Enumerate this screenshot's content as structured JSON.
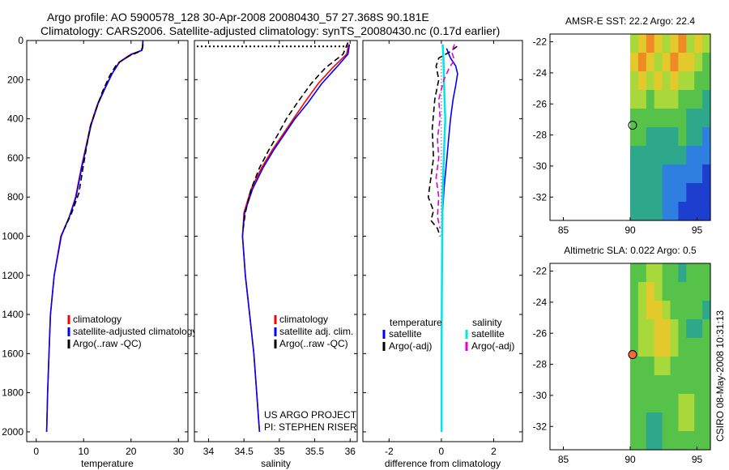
{
  "title_line1": "Argo profile: AO 5900578_128 30-Apr-2008 20080430_57 27.368S 90.181E",
  "title_line2": "Climatology: CARS2006. Satellite-adjusted climatology: synTS_20080430.nc (0.17d earlier)",
  "side_label": "CSIRO 08-May-2008 10:31:13",
  "colors": {
    "climatology": "#ff0000",
    "satellite": "#0000ff",
    "argo": "#000000",
    "sal_satellite": "#00e5e5",
    "sal_argo": "#dd00dd"
  },
  "chart_data": [
    {
      "type": "line",
      "id": "temperature",
      "xlabel": "temperature",
      "xlim": [
        -2,
        32
      ],
      "ylim": [
        2050,
        0
      ],
      "xticks": [
        0,
        10,
        20,
        30
      ],
      "yticks": [
        0,
        200,
        400,
        600,
        800,
        1000,
        1200,
        1400,
        1600,
        1800,
        2000
      ],
      "legend": [
        "climatology",
        "satellite-adjusted climatology",
        "Argo(..raw -QC)"
      ],
      "series": [
        {
          "name": "climatology",
          "color": "#ff0000",
          "dash": "",
          "x": [
            22.5,
            22.4,
            22.3,
            20,
            17.5,
            16,
            14.5,
            13,
            11.5,
            10.5,
            9.5,
            8.3,
            7,
            5.2,
            3.8,
            3,
            2.7,
            2.4,
            2.2
          ],
          "y": [
            0,
            30,
            50,
            70,
            110,
            170,
            240,
            320,
            430,
            540,
            650,
            800,
            900,
            1000,
            1200,
            1400,
            1600,
            1800,
            2000
          ]
        },
        {
          "name": "satellite-adjusted climatology",
          "color": "#0000ff",
          "dash": "",
          "x": [
            22.5,
            22.5,
            22.3,
            20.2,
            17.6,
            16,
            14.6,
            13.1,
            11.6,
            10.6,
            9.6,
            8.4,
            7,
            5.3,
            3.8,
            3,
            2.7,
            2.4,
            2.2
          ],
          "y": [
            0,
            30,
            50,
            70,
            110,
            170,
            240,
            320,
            430,
            540,
            650,
            800,
            900,
            1000,
            1200,
            1400,
            1600,
            1800,
            2000
          ]
        },
        {
          "name": "Argo(..raw -QC)",
          "color": "#000000",
          "dash": "7,4",
          "x": [
            22.5,
            22.4,
            21.5,
            19.5,
            17,
            15.5,
            14,
            12.8,
            11.4,
            10.5,
            9.8,
            9,
            7.5,
            6
          ],
          "y": [
            20,
            40,
            60,
            80,
            120,
            180,
            260,
            340,
            440,
            560,
            660,
            780,
            880,
            960
          ]
        }
      ]
    },
    {
      "type": "line",
      "id": "salinity",
      "xlabel": "salinity",
      "xlim": [
        33.8,
        36.1
      ],
      "ylim": [
        2050,
        0
      ],
      "xticks": [
        34,
        34.5,
        35,
        35.5,
        36
      ],
      "xtick_labels": [
        "34",
        "34.5",
        "35",
        "35.5",
        "36"
      ],
      "legend": [
        "climatology",
        "satellite adj. clim.",
        "Argo(..raw -QC)"
      ],
      "annotation": [
        "US ARGO PROJECT",
        "PI: STEPHEN RISER"
      ],
      "series": [
        {
          "name": "climatology",
          "color": "#ff0000",
          "dash": "",
          "x": [
            35.98,
            35.95,
            35.75,
            35.55,
            35.35,
            35.2,
            35.05,
            34.9,
            34.75,
            34.6,
            34.5,
            34.48,
            34.52,
            34.58,
            34.64,
            34.68,
            34.71,
            34.72
          ],
          "y": [
            20,
            70,
            140,
            220,
            320,
            400,
            480,
            560,
            650,
            760,
            880,
            1000,
            1200,
            1400,
            1600,
            1800,
            1950,
            2000
          ]
        },
        {
          "name": "satellite adj. clim.",
          "color": "#0000ff",
          "dash": "",
          "x": [
            35.99,
            35.97,
            35.8,
            35.6,
            35.4,
            35.22,
            35.07,
            34.92,
            34.77,
            34.62,
            34.51,
            34.48,
            34.52,
            34.58,
            34.64,
            34.68,
            34.71,
            34.72
          ],
          "y": [
            20,
            70,
            140,
            220,
            320,
            400,
            480,
            560,
            650,
            760,
            880,
            1000,
            1200,
            1400,
            1600,
            1800,
            1950,
            2000
          ]
        },
        {
          "name": "Argo(..raw -QC)",
          "color": "#000000",
          "dash": "7,4",
          "x": [
            35.97,
            35.9,
            35.65,
            35.45,
            35.25,
            35.1,
            34.98,
            34.85,
            34.72,
            34.6,
            34.52,
            34.49
          ],
          "y": [
            10,
            70,
            140,
            220,
            320,
            400,
            480,
            560,
            650,
            760,
            880,
            960
          ]
        }
      ]
    },
    {
      "type": "line",
      "id": "difference",
      "xlabel": "difference from climatology",
      "xlim": [
        -3,
        3.1
      ],
      "ylim": [
        2050,
        0
      ],
      "xticks": [
        -2,
        0,
        2
      ],
      "legend_left_title": "temperature",
      "legend_right_title": "salinity",
      "legend_left": [
        "satellite",
        "Argo(-adj)"
      ],
      "legend_right": [
        "satellite",
        "Argo(-adj)"
      ],
      "series": [
        {
          "name": "temperature satellite",
          "color": "#0000ff",
          "dash": "",
          "x": [
            0.2,
            0.35,
            0.55,
            0.62,
            0.55,
            0.45,
            0.35,
            0.28,
            0.2,
            0.1,
            0.05,
            0.03,
            0.02,
            0.01,
            0.01,
            0.01
          ],
          "y": [
            40,
            90,
            130,
            170,
            230,
            300,
            400,
            500,
            620,
            760,
            880,
            1000,
            1200,
            1500,
            1800,
            2000
          ]
        },
        {
          "name": "temperature Argo(-adj)",
          "color": "#000000",
          "dash": "7,4",
          "x": [
            0.6,
            0.3,
            -0.1,
            -0.2,
            -0.1,
            -0.25,
            -0.35,
            -0.3,
            -0.4,
            -0.5,
            -0.3,
            -0.4,
            -0.15,
            -0.05
          ],
          "y": [
            30,
            60,
            90,
            130,
            200,
            300,
            450,
            600,
            700,
            800,
            870,
            920,
            960,
            1000
          ]
        },
        {
          "name": "salinity satellite",
          "color": "#00e5e5",
          "dash": "",
          "x": [
            0.05,
            0.08,
            0.1,
            0.12,
            0.15,
            0.12,
            0.08,
            0.05,
            0.03,
            0.02,
            0.01,
            0.01
          ],
          "y": [
            20,
            100,
            200,
            300,
            400,
            500,
            650,
            800,
            1000,
            1300,
            1600,
            2000
          ]
        },
        {
          "name": "salinity Argo(-adj)",
          "color": "#dd00dd",
          "dash": "7,4",
          "x": [
            0.5,
            0.4,
            0.5,
            0.3,
            0.1,
            -0.1,
            -0.05,
            -0.15,
            -0.1,
            -0.2,
            -0.1,
            -0.15,
            -0.05
          ],
          "y": [
            20,
            60,
            100,
            140,
            200,
            300,
            400,
            500,
            600,
            700,
            800,
            900,
            960
          ]
        }
      ]
    },
    {
      "type": "heatmap",
      "id": "sst_map",
      "title": "AMSR-E SST: 22.2  Argo: 22.4",
      "xlim": [
        84,
        96
      ],
      "ylim": [
        -33.5,
        -21.5
      ],
      "xticks": [
        85,
        90,
        95
      ],
      "yticks": [
        -22,
        -24,
        -26,
        -28,
        -30,
        -32
      ],
      "data_lon_start": 90,
      "marker": {
        "lon": 90.18,
        "lat": -27.37,
        "fill": "none"
      },
      "rows": [
        [
          4,
          5,
          6,
          5,
          4,
          5,
          6,
          4,
          5,
          4
        ],
        [
          5,
          6,
          5,
          4,
          5,
          6,
          5,
          5,
          4,
          3
        ],
        [
          4,
          5,
          4,
          5,
          4,
          5,
          4,
          4,
          3,
          3
        ],
        [
          4,
          4,
          3,
          4,
          4,
          4,
          3,
          3,
          3,
          2
        ],
        [
          3,
          3,
          3,
          3,
          3,
          3,
          3,
          2,
          2,
          2
        ],
        [
          3,
          3,
          2,
          2,
          2,
          2,
          3,
          2,
          2,
          1
        ],
        [
          2,
          2,
          2,
          2,
          2,
          2,
          2,
          1,
          1,
          1
        ],
        [
          2,
          2,
          2,
          2,
          1,
          1,
          1,
          1,
          1,
          0
        ],
        [
          2,
          2,
          2,
          2,
          1,
          1,
          1,
          0,
          0,
          0
        ],
        [
          2,
          2,
          2,
          2,
          1,
          1,
          0,
          0,
          0,
          0
        ]
      ]
    },
    {
      "type": "heatmap",
      "id": "sla_map",
      "title": "Altimetric SLA: 0.022  Argo: 0.5",
      "xlim": [
        84,
        96
      ],
      "ylim": [
        -33.5,
        -21.5
      ],
      "xticks": [
        85,
        90,
        95
      ],
      "yticks": [
        -22,
        -24,
        -26,
        -28,
        -30,
        -32
      ],
      "data_lon_start": 90,
      "marker": {
        "lon": 90.18,
        "lat": -27.37,
        "fill": "#ff6633"
      },
      "rows": [
        [
          3,
          3,
          4,
          4,
          3,
          3,
          2,
          3,
          3,
          3
        ],
        [
          3,
          4,
          5,
          4,
          3,
          3,
          3,
          3,
          3,
          3
        ],
        [
          3,
          4,
          5,
          5,
          4,
          3,
          3,
          3,
          3,
          2
        ],
        [
          3,
          4,
          4,
          5,
          5,
          4,
          3,
          2,
          2,
          3
        ],
        [
          3,
          4,
          4,
          5,
          5,
          4,
          3,
          3,
          3,
          3
        ],
        [
          3,
          3,
          3,
          4,
          4,
          3,
          3,
          3,
          3,
          3
        ],
        [
          3,
          3,
          3,
          3,
          3,
          3,
          3,
          3,
          3,
          3
        ],
        [
          3,
          3,
          3,
          3,
          3,
          3,
          4,
          4,
          3,
          3
        ],
        [
          3,
          3,
          2,
          2,
          3,
          3,
          4,
          4,
          3,
          3
        ],
        [
          3,
          3,
          2,
          2,
          3,
          3,
          3,
          3,
          3,
          3
        ]
      ]
    }
  ]
}
